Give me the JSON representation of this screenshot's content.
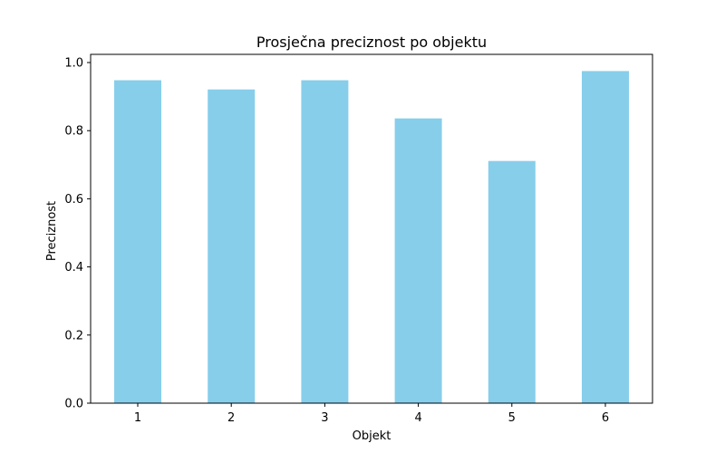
{
  "chart_data": {
    "type": "bar",
    "title": "Prosječna preciznost po objektu",
    "xlabel": "Objekt",
    "ylabel": "Preciznost",
    "categories": [
      "1",
      "2",
      "3",
      "4",
      "5",
      "6"
    ],
    "values": [
      0.948,
      0.921,
      0.948,
      0.836,
      0.711,
      0.975
    ],
    "ylim": [
      0,
      1.0
    ],
    "yticks": [
      "0.0",
      "0.2",
      "0.4",
      "0.6",
      "0.8",
      "1.0"
    ],
    "grid": false,
    "bar_color": "#87ceeb",
    "axis_color": "#000000"
  }
}
